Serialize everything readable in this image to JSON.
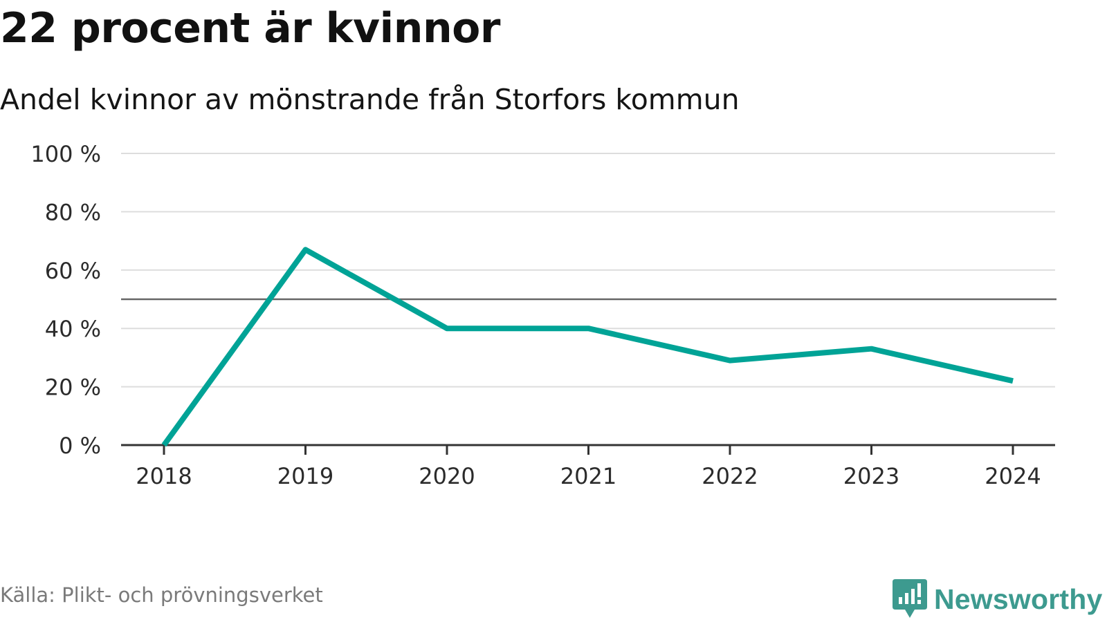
{
  "title": "22 procent är kvinnor",
  "subtitle": "Andel kvinnor av mönstrande från Storfors kommun",
  "source": "Källa: Plikt- och prövningsverket",
  "brand": "Newsworthy",
  "colors": {
    "line": "#00a396",
    "reference": "#666666",
    "grid": "#dddddd",
    "axis": "#333333",
    "brand": "#3d9a8f"
  },
  "chart_data": {
    "type": "line",
    "x": [
      "2018",
      "2019",
      "2020",
      "2021",
      "2022",
      "2023",
      "2024"
    ],
    "values": [
      0,
      67,
      40,
      40,
      29,
      33,
      22
    ],
    "reference_line": 50,
    "ylim": [
      0,
      100
    ],
    "yticks": [
      0,
      20,
      40,
      60,
      80,
      100
    ],
    "ytick_labels": [
      "0 %",
      "20 %",
      "40 %",
      "60 %",
      "80 %",
      "100 %"
    ],
    "grid": true,
    "xlabel": "",
    "ylabel": ""
  }
}
